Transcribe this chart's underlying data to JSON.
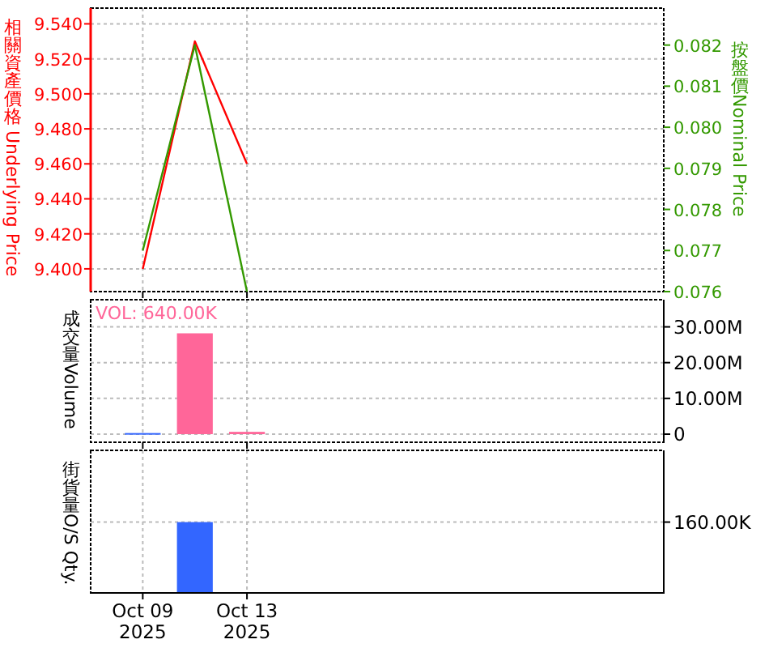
{
  "chart_data": [
    {
      "type": "line",
      "ylabel": "相關資產價格 Underlying Price",
      "y2label": "按盤價Nominal Price",
      "x": [
        "2025-10-09",
        "2025-10-11",
        "2025-10-13"
      ],
      "xlim": [
        "2025-10-07",
        "2025-10-29"
      ],
      "xticks": [
        {
          "value": "2025-10-09",
          "label": null
        },
        {
          "value": "2025-10-13",
          "label": null
        }
      ],
      "series": [
        {
          "color": "#ff0000",
          "values": [
            9.4,
            9.53,
            9.46
          ]
        },
        {
          "color": "#339900",
          "axis": "y2",
          "values": [
            0.077,
            0.082,
            0.076
          ]
        }
      ],
      "ylim": [
        9.387,
        9.549
      ],
      "yticks": [
        {
          "value": 9.4,
          "label": "9.400"
        },
        {
          "value": 9.42,
          "label": "9.420"
        },
        {
          "value": 9.44,
          "label": "9.440"
        },
        {
          "value": 9.46,
          "label": "9.460"
        },
        {
          "value": 9.48,
          "label": "9.480"
        },
        {
          "value": 9.5,
          "label": "9.500"
        },
        {
          "value": 9.52,
          "label": "9.520"
        },
        {
          "value": 9.54,
          "label": "9.540"
        }
      ],
      "y2lim": [
        0.076,
        0.0829
      ],
      "y2ticks": [
        0.076,
        0.077,
        0.078,
        0.079,
        {
          "value": 0.08,
          "label": "0.080"
        },
        0.081,
        0.082
      ],
      "grid": true,
      "marker": "none",
      "tick_labels": "y"
    },
    {
      "type": "bar",
      "ylabel": "成交量Volume",
      "annotations": [
        "VOL: 640.00K"
      ],
      "x": [
        "2025-10-09",
        "2025-10-11",
        "2025-10-13"
      ],
      "xlim": [
        "2025-10-07",
        "2025-10-29"
      ],
      "xticks": [
        {
          "value": "2025-10-09",
          "label": null
        },
        {
          "value": "2025-10-13",
          "label": null
        }
      ],
      "values": [
        300000,
        28200000,
        640000
      ],
      "colors": [
        "#3366ff",
        "#ff6699",
        "#ff6699"
      ],
      "ylim": [
        -2270000,
        37600000
      ],
      "yticks": [
        0,
        {
          "value": 10000000,
          "label": "10.00M"
        },
        {
          "value": 20000000,
          "label": "20.00M"
        },
        {
          "value": 30000000,
          "label": "30.00M"
        }
      ],
      "grid": true,
      "tick_labels": "y"
    },
    {
      "type": "bar",
      "ylabel": "街貨量O/S Qty.",
      "x": [
        "2025-10-11"
      ],
      "xlim": [
        "2025-10-07",
        "2025-10-29"
      ],
      "xticks": [
        {
          "value": "2025-10-09",
          "label": "Oct 09 2025"
        },
        {
          "value": "2025-10-13",
          "label": "Oct 13 2025"
        }
      ],
      "values": [
        160000
      ],
      "color": "#3366ff",
      "ylim": [
        0,
        322000
      ],
      "yticks": [
        {
          "value": 160000,
          "label": "160.00K"
        }
      ],
      "grid": true
    }
  ]
}
